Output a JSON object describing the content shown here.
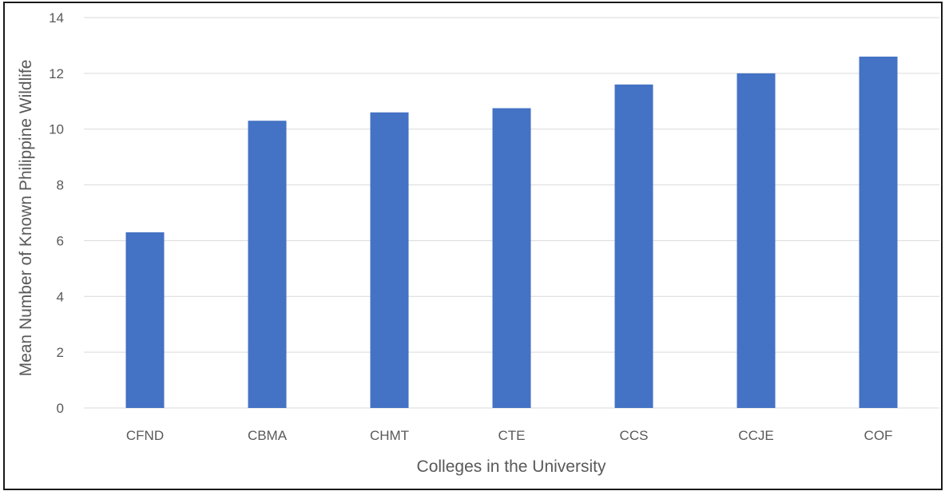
{
  "chart_data": {
    "type": "bar",
    "title": "",
    "xlabel": "Colleges in the University",
    "ylabel": "Mean Number of Known Philippine Wildlife",
    "categories": [
      "CFND",
      "CBMA",
      "CHMT",
      "CTE",
      "CCS",
      "CCJE",
      "COF"
    ],
    "values": [
      6.3,
      10.3,
      10.6,
      10.75,
      11.6,
      12.0,
      12.6
    ],
    "ylim": [
      0,
      14
    ],
    "yticks": [
      0,
      2,
      4,
      6,
      8,
      10,
      12,
      14
    ],
    "grid": true,
    "legend": "none",
    "bar_color": "#4472C4",
    "grid_color": "#d9d9d9",
    "text_color": "#595959"
  }
}
